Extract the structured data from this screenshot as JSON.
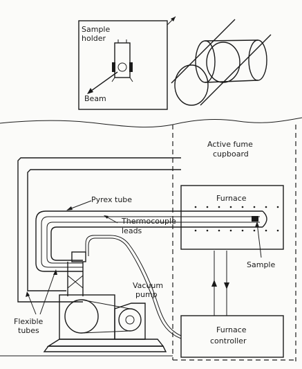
{
  "labels": {
    "sample_holder_line1": "Sample",
    "sample_holder_line2": "holder",
    "beam": "Beam",
    "active_fume_line1": "Active fume",
    "active_fume_line2": "cupboard",
    "furnace": "Furnace",
    "pyrex_tube": "Pyrex tube",
    "thermocouple_line1": "Thermocouple",
    "thermocouple_line2": "leads",
    "sample": "Sample",
    "vacuum_line1": "Vacuum",
    "vacuum_line2": "pump",
    "flexible_line1": "Flexible",
    "flexible_line2": "tubes",
    "controller_line1": "Furnace",
    "controller_line2": "controller"
  }
}
